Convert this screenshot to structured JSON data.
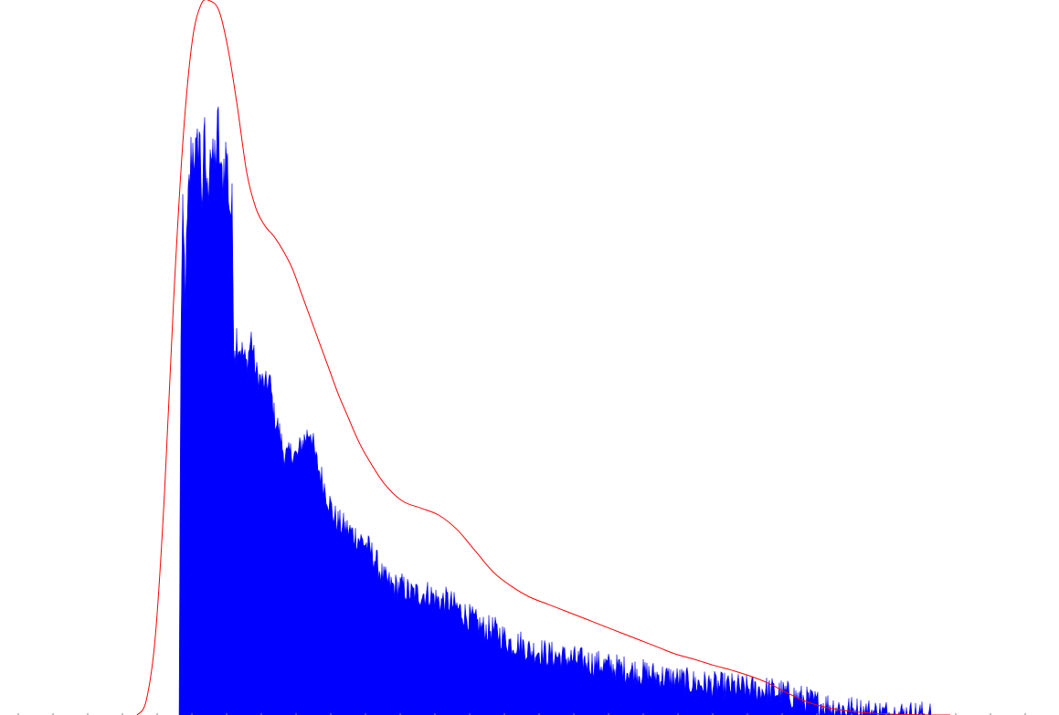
{
  "chart_data": {
    "type": "area",
    "title": "",
    "xlabel": "",
    "ylabel": "",
    "xlim": [
      0,
      1159
    ],
    "ylim": [
      0,
      1
    ],
    "grid": false,
    "legend": "none",
    "series": [
      {
        "kind": "histogram",
        "color": "#0000ff",
        "x": [
          196,
          198,
          200,
          203,
          206,
          209,
          212,
          215,
          218,
          221,
          224,
          227,
          230,
          233,
          236,
          239,
          242,
          245,
          248,
          251,
          254,
          256,
          260,
          265,
          270,
          275,
          280,
          285,
          290,
          295,
          300,
          305,
          310,
          315,
          320,
          325,
          330,
          335,
          340,
          345,
          350,
          355,
          360,
          365,
          370,
          380,
          390,
          400,
          410,
          420,
          430,
          440,
          450,
          460,
          470,
          480,
          490,
          500,
          510,
          520,
          530,
          540,
          550,
          560,
          570,
          580,
          590,
          600,
          620,
          640,
          660,
          680,
          700,
          720,
          740,
          760,
          780,
          800,
          820,
          840,
          860,
          880,
          900,
          920,
          940,
          960,
          980,
          1000,
          1020
        ],
        "values": [
          0.0,
          0.55,
          0.68,
          0.6,
          0.71,
          0.78,
          0.8,
          0.77,
          0.82,
          0.73,
          0.8,
          0.72,
          0.81,
          0.76,
          0.79,
          0.82,
          0.74,
          0.77,
          0.79,
          0.72,
          0.7,
          0.54,
          0.52,
          0.51,
          0.49,
          0.53,
          0.48,
          0.47,
          0.46,
          0.47,
          0.42,
          0.4,
          0.37,
          0.36,
          0.37,
          0.36,
          0.38,
          0.39,
          0.4,
          0.36,
          0.34,
          0.32,
          0.3,
          0.28,
          0.27,
          0.26,
          0.25,
          0.24,
          0.22,
          0.19,
          0.18,
          0.18,
          0.17,
          0.17,
          0.17,
          0.16,
          0.16,
          0.15,
          0.14,
          0.13,
          0.12,
          0.12,
          0.11,
          0.1,
          0.1,
          0.09,
          0.09,
          0.085,
          0.08,
          0.075,
          0.07,
          0.065,
          0.06,
          0.055,
          0.05,
          0.045,
          0.042,
          0.04,
          0.037,
          0.035,
          0.03,
          0.022,
          0.015,
          0.01,
          0.006,
          0.003,
          0.002,
          0.001,
          0.0
        ]
      },
      {
        "kind": "density",
        "color": "#ff0000",
        "x": [
          150,
          160,
          170,
          180,
          190,
          200,
          210,
          220,
          230,
          240,
          250,
          260,
          270,
          280,
          290,
          300,
          310,
          320,
          330,
          340,
          350,
          360,
          370,
          380,
          390,
          400,
          420,
          440,
          460,
          480,
          500,
          520,
          540,
          560,
          580,
          600,
          620,
          640,
          660,
          680,
          700,
          720,
          740,
          760,
          780,
          800,
          820,
          840,
          860,
          880,
          900,
          920,
          940,
          960,
          980,
          1000,
          1020,
          1040
        ],
        "values": [
          0.0,
          0.02,
          0.11,
          0.31,
          0.58,
          0.8,
          0.94,
          0.995,
          1.0,
          0.985,
          0.93,
          0.85,
          0.76,
          0.71,
          0.685,
          0.67,
          0.65,
          0.625,
          0.59,
          0.555,
          0.52,
          0.485,
          0.45,
          0.42,
          0.39,
          0.365,
          0.325,
          0.3,
          0.29,
          0.28,
          0.26,
          0.23,
          0.2,
          0.18,
          0.165,
          0.155,
          0.145,
          0.135,
          0.125,
          0.115,
          0.105,
          0.095,
          0.085,
          0.078,
          0.07,
          0.063,
          0.055,
          0.045,
          0.032,
          0.02,
          0.012,
          0.007,
          0.004,
          0.002,
          0.001,
          0.0005,
          0.0,
          0.0
        ]
      }
    ]
  }
}
